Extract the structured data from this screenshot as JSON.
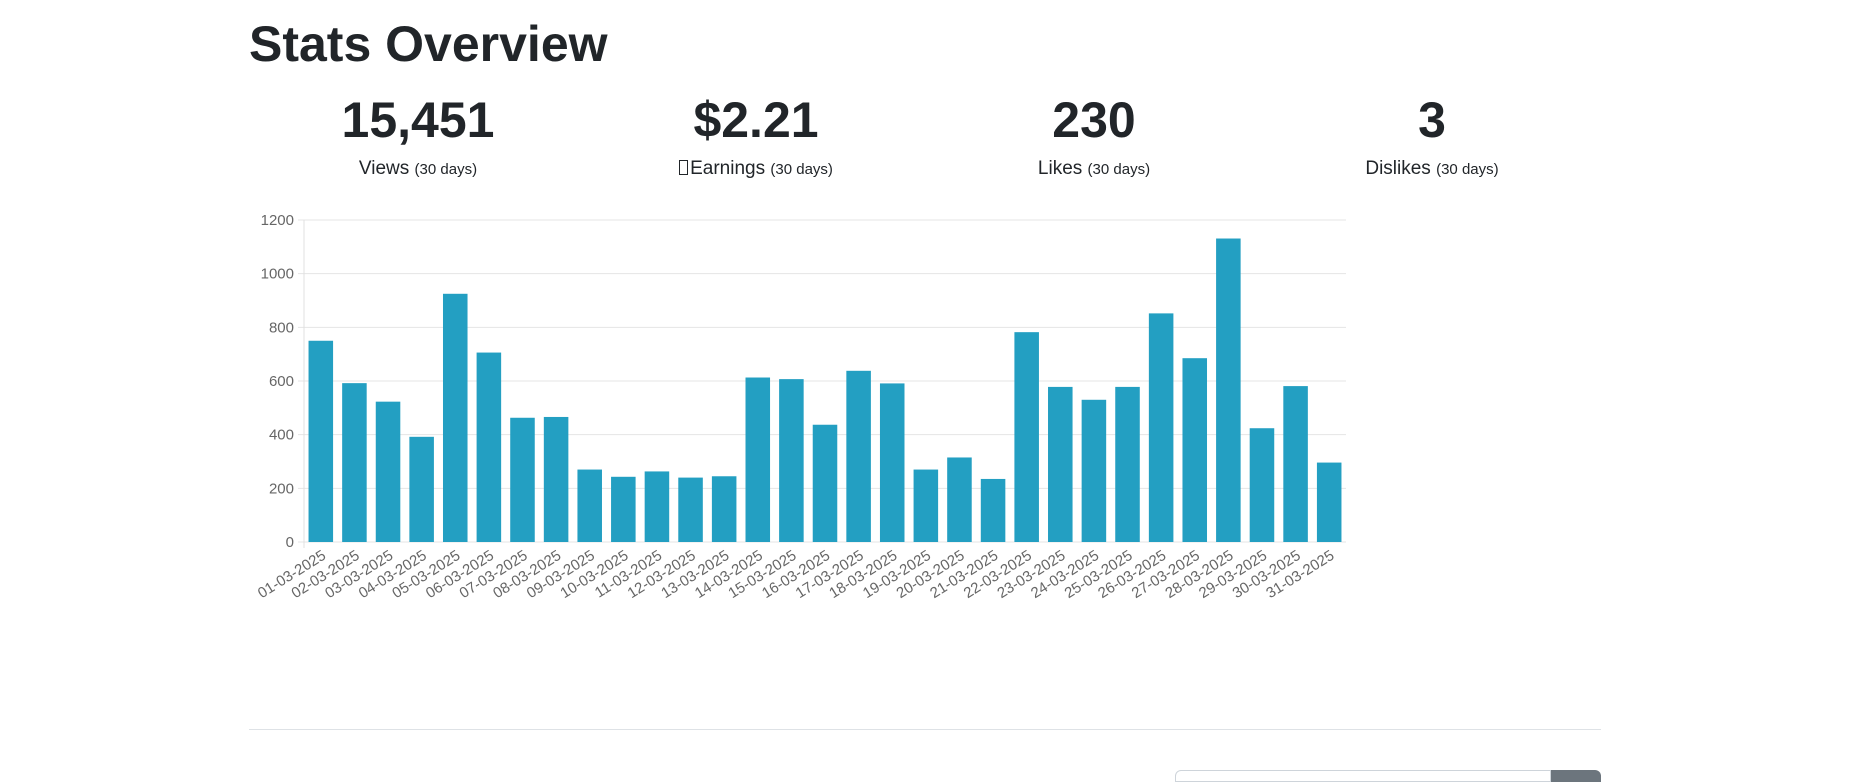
{
  "header": {
    "title": "Stats Overview"
  },
  "stats": [
    {
      "value": "15,451",
      "label": "Views",
      "period": "(30 days)"
    },
    {
      "value": "$2.21",
      "label": "Earnings",
      "period": "(30 days)"
    },
    {
      "value": "230",
      "label": "Likes",
      "period": "(30 days)"
    },
    {
      "value": "3",
      "label": "Dislikes",
      "period": "(30 days)"
    }
  ],
  "colors": {
    "bar": "#239fc2",
    "grid": "#e5e5e5",
    "text": "#212529"
  },
  "chart_data": {
    "type": "bar",
    "title": "",
    "xlabel": "",
    "ylabel": "",
    "ylim": [
      0,
      1200
    ],
    "yticks": [
      0,
      200,
      400,
      600,
      800,
      1000,
      1200
    ],
    "grid": true,
    "categories": [
      "01-03-2025",
      "02-03-2025",
      "03-03-2025",
      "04-03-2025",
      "05-03-2025",
      "06-03-2025",
      "07-03-2025",
      "08-03-2025",
      "09-03-2025",
      "10-03-2025",
      "11-03-2025",
      "12-03-2025",
      "13-03-2025",
      "14-03-2025",
      "15-03-2025",
      "16-03-2025",
      "17-03-2025",
      "18-03-2025",
      "19-03-2025",
      "20-03-2025",
      "21-03-2025",
      "22-03-2025",
      "23-03-2025",
      "24-03-2025",
      "25-03-2025",
      "26-03-2025",
      "27-03-2025",
      "28-03-2025",
      "29-03-2025",
      "30-03-2025",
      "31-03-2025"
    ],
    "values": [
      750,
      592,
      523,
      392,
      925,
      706,
      463,
      466,
      270,
      243,
      263,
      240,
      245,
      613,
      607,
      437,
      638,
      591,
      270,
      315,
      235,
      782,
      578,
      530,
      578,
      852,
      685,
      1131,
      424,
      581,
      296
    ]
  }
}
